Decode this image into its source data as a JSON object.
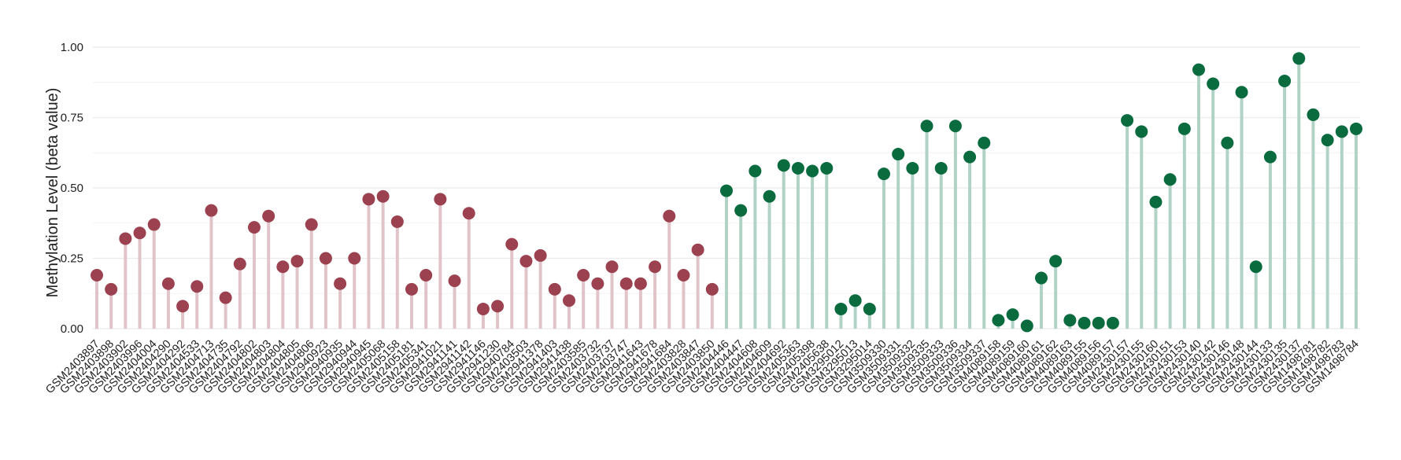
{
  "chart_data": {
    "type": "lollipop",
    "ylabel": "Methylation Level (beta value)",
    "xlabel": "",
    "title": "",
    "ylim": [
      0,
      1
    ],
    "yticks": [
      "0.00",
      "0.25",
      "0.50",
      "0.75",
      "1.00"
    ],
    "grid": true,
    "series": [
      {
        "color": "#9b4150",
        "stem_color": "#e0c4ca",
        "points": [
          {
            "x": "GSM2403897",
            "y": 0.19
          },
          {
            "x": "GSM2403898",
            "y": 0.14
          },
          {
            "x": "GSM2403902",
            "y": 0.32
          },
          {
            "x": "GSM2403996",
            "y": 0.34
          },
          {
            "x": "GSM2404004",
            "y": 0.37
          },
          {
            "x": "GSM2404290",
            "y": 0.16
          },
          {
            "x": "GSM2404292",
            "y": 0.08
          },
          {
            "x": "GSM2404533",
            "y": 0.15
          },
          {
            "x": "GSM2404713",
            "y": 0.42
          },
          {
            "x": "GSM2404735",
            "y": 0.11
          },
          {
            "x": "GSM2404792",
            "y": 0.23
          },
          {
            "x": "GSM2404802",
            "y": 0.36
          },
          {
            "x": "GSM2404803",
            "y": 0.4
          },
          {
            "x": "GSM2404804",
            "y": 0.22
          },
          {
            "x": "GSM2404805",
            "y": 0.24
          },
          {
            "x": "GSM2404806",
            "y": 0.37
          },
          {
            "x": "GSM2940923",
            "y": 0.25
          },
          {
            "x": "GSM2940935",
            "y": 0.16
          },
          {
            "x": "GSM2940944",
            "y": 0.25
          },
          {
            "x": "GSM2940945",
            "y": 0.46
          },
          {
            "x": "GSM2405068",
            "y": 0.47
          },
          {
            "x": "GSM2405158",
            "y": 0.38
          },
          {
            "x": "GSM2405181",
            "y": 0.14
          },
          {
            "x": "GSM2405341",
            "y": 0.19
          },
          {
            "x": "GSM2941021",
            "y": 0.46
          },
          {
            "x": "GSM2941141",
            "y": 0.17
          },
          {
            "x": "GSM2941142",
            "y": 0.41
          },
          {
            "x": "GSM2941146",
            "y": 0.07
          },
          {
            "x": "GSM2941230",
            "y": 0.08
          },
          {
            "x": "GSM2940784",
            "y": 0.3
          },
          {
            "x": "GSM2403503",
            "y": 0.24
          },
          {
            "x": "GSM2941378",
            "y": 0.26
          },
          {
            "x": "GSM2941403",
            "y": 0.14
          },
          {
            "x": "GSM2941438",
            "y": 0.1
          },
          {
            "x": "GSM2403585",
            "y": 0.19
          },
          {
            "x": "GSM2403732",
            "y": 0.16
          },
          {
            "x": "GSM2403737",
            "y": 0.22
          },
          {
            "x": "GSM2403747",
            "y": 0.16
          },
          {
            "x": "GSM2941643",
            "y": 0.16
          },
          {
            "x": "GSM2941678",
            "y": 0.22
          },
          {
            "x": "GSM2941684",
            "y": 0.4
          },
          {
            "x": "GSM2403828",
            "y": 0.19
          },
          {
            "x": "GSM2403847",
            "y": 0.28
          },
          {
            "x": "GSM2403850",
            "y": 0.14
          }
        ]
      },
      {
        "color": "#0a6b3f",
        "stem_color": "#b1d3c5",
        "points": [
          {
            "x": "GSM2404446",
            "y": 0.49
          },
          {
            "x": "GSM2404447",
            "y": 0.42
          },
          {
            "x": "GSM2404608",
            "y": 0.56
          },
          {
            "x": "GSM2404609",
            "y": 0.47
          },
          {
            "x": "GSM2404692",
            "y": 0.58
          },
          {
            "x": "GSM2405363",
            "y": 0.57
          },
          {
            "x": "GSM2405398",
            "y": 0.56
          },
          {
            "x": "GSM2405638",
            "y": 0.57
          },
          {
            "x": "GSM3295012",
            "y": 0.07
          },
          {
            "x": "GSM3295013",
            "y": 0.1
          },
          {
            "x": "GSM3295014",
            "y": 0.07
          },
          {
            "x": "GSM3509330",
            "y": 0.55
          },
          {
            "x": "GSM3509331",
            "y": 0.62
          },
          {
            "x": "GSM3509332",
            "y": 0.57
          },
          {
            "x": "GSM3509335",
            "y": 0.72
          },
          {
            "x": "GSM3509333",
            "y": 0.57
          },
          {
            "x": "GSM3509336",
            "y": 0.72
          },
          {
            "x": "GSM3509334",
            "y": 0.61
          },
          {
            "x": "GSM3509337",
            "y": 0.66
          },
          {
            "x": "GSM4089158",
            "y": 0.03
          },
          {
            "x": "GSM4089159",
            "y": 0.05
          },
          {
            "x": "GSM4089160",
            "y": 0.01
          },
          {
            "x": "GSM4089161",
            "y": 0.18
          },
          {
            "x": "GSM4089162",
            "y": 0.24
          },
          {
            "x": "GSM4089163",
            "y": 0.03
          },
          {
            "x": "GSM4089155",
            "y": 0.02
          },
          {
            "x": "GSM4089156",
            "y": 0.02
          },
          {
            "x": "GSM4089157",
            "y": 0.02
          },
          {
            "x": "GSM2430157",
            "y": 0.74
          },
          {
            "x": "GSM2430155",
            "y": 0.7
          },
          {
            "x": "GSM2430160",
            "y": 0.45
          },
          {
            "x": "GSM2430151",
            "y": 0.53
          },
          {
            "x": "GSM2430153",
            "y": 0.71
          },
          {
            "x": "GSM2430140",
            "y": 0.92
          },
          {
            "x": "GSM2430142",
            "y": 0.87
          },
          {
            "x": "GSM2430146",
            "y": 0.66
          },
          {
            "x": "GSM2430148",
            "y": 0.84
          },
          {
            "x": "GSM2430144",
            "y": 0.22
          },
          {
            "x": "GSM2430133",
            "y": 0.61
          },
          {
            "x": "GSM2430135",
            "y": 0.88
          },
          {
            "x": "GSM2430137",
            "y": 0.96
          },
          {
            "x": "GSM1498781",
            "y": 0.76
          },
          {
            "x": "GSM1498782",
            "y": 0.67
          },
          {
            "x": "GSM1498783",
            "y": 0.7
          },
          {
            "x": "GSM1498784",
            "y": 0.71
          }
        ]
      }
    ]
  }
}
